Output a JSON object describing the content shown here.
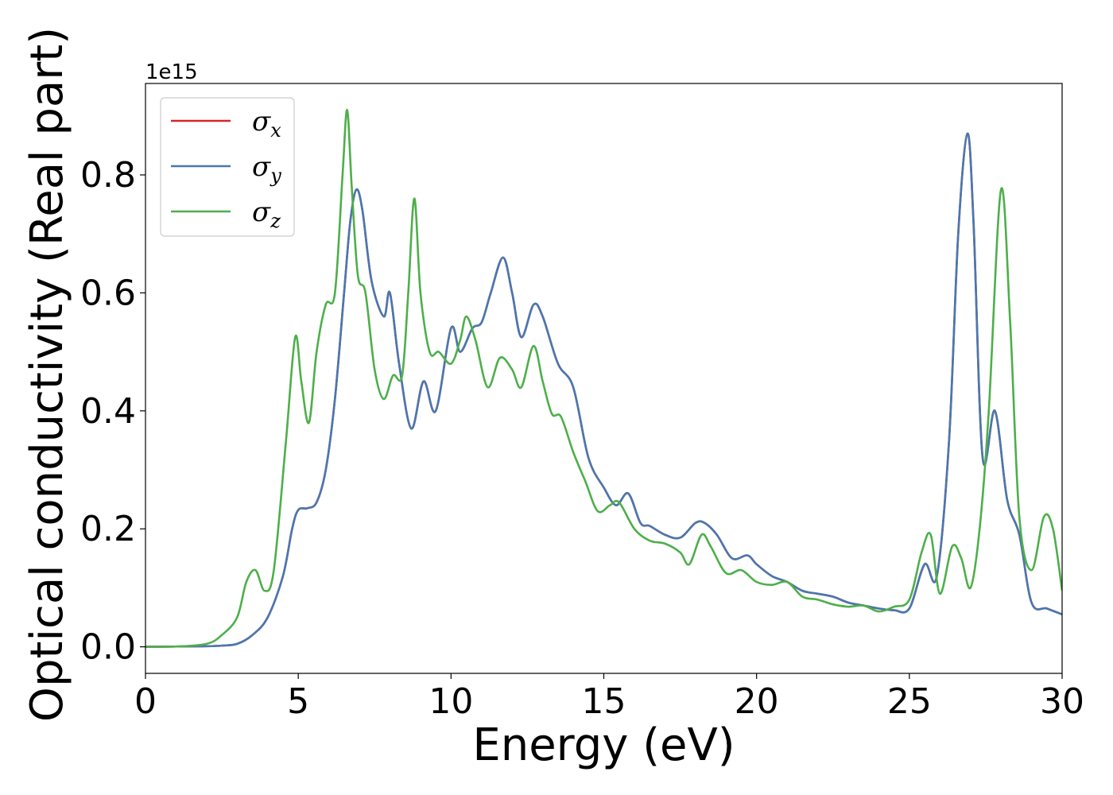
{
  "chart_data": {
    "type": "line",
    "xlabel": "Energy (eV)",
    "ylabel": "Optical conductivity (Real part)",
    "y_offset_text": "1e15",
    "xlim": [
      0,
      30
    ],
    "ylim": [
      -0.045,
      0.955
    ],
    "x_ticks": [
      0,
      5,
      10,
      15,
      20,
      25,
      30
    ],
    "x_tick_labels": [
      "0",
      "5",
      "10",
      "15",
      "20",
      "25",
      "30"
    ],
    "y_ticks": [
      0.0,
      0.2,
      0.4,
      0.6,
      0.8
    ],
    "y_tick_labels": [
      "0.0",
      "0.2",
      "0.4",
      "0.6",
      "0.8"
    ],
    "grid": false,
    "legend_position": "top-left",
    "series": [
      {
        "name": "σx",
        "name_base": "σ",
        "name_sub": "x",
        "color": "#d62728",
        "x": [
          0,
          1,
          2,
          2.5,
          3,
          3.5,
          4,
          4.5,
          4.8,
          5,
          5.3,
          5.6,
          5.9,
          6.2,
          6.5,
          6.7,
          6.9,
          7.1,
          7.4,
          7.8,
          8.0,
          8.3,
          8.7,
          9.1,
          9.5,
          10.0,
          10.3,
          10.7,
          11.0,
          11.3,
          11.7,
          12.0,
          12.3,
          12.7,
          13.0,
          13.5,
          14.0,
          14.5,
          15.0,
          15.4,
          15.8,
          16.2,
          16.5,
          17.0,
          17.5,
          18.0,
          18.3,
          18.7,
          19.2,
          19.7,
          20.0,
          20.5,
          21.0,
          21.5,
          22.0,
          22.5,
          23.0,
          23.5,
          24.0,
          24.5,
          25.0,
          25.5,
          25.9,
          26.3,
          26.6,
          26.9,
          27.1,
          27.4,
          27.8,
          28.2,
          28.6,
          29.0,
          29.5,
          30.0
        ],
        "y": [
          0,
          0.0005,
          0.001,
          0.002,
          0.005,
          0.02,
          0.05,
          0.12,
          0.2,
          0.232,
          0.235,
          0.245,
          0.3,
          0.42,
          0.6,
          0.72,
          0.775,
          0.74,
          0.62,
          0.56,
          0.6,
          0.48,
          0.37,
          0.45,
          0.4,
          0.54,
          0.5,
          0.54,
          0.55,
          0.6,
          0.66,
          0.6,
          0.525,
          0.58,
          0.56,
          0.48,
          0.44,
          0.32,
          0.27,
          0.24,
          0.26,
          0.21,
          0.205,
          0.19,
          0.185,
          0.21,
          0.21,
          0.19,
          0.15,
          0.155,
          0.14,
          0.12,
          0.11,
          0.095,
          0.09,
          0.085,
          0.075,
          0.07,
          0.065,
          0.062,
          0.065,
          0.14,
          0.12,
          0.35,
          0.7,
          0.87,
          0.72,
          0.32,
          0.4,
          0.25,
          0.19,
          0.075,
          0.065,
          0.055
        ]
      },
      {
        "name": "σy",
        "name_base": "σ",
        "name_sub": "y",
        "color": "#4878b0",
        "x": [
          0,
          1,
          2,
          2.5,
          3,
          3.5,
          4,
          4.5,
          4.8,
          5,
          5.3,
          5.6,
          5.9,
          6.2,
          6.5,
          6.7,
          6.9,
          7.1,
          7.4,
          7.8,
          8.0,
          8.3,
          8.7,
          9.1,
          9.5,
          10.0,
          10.3,
          10.7,
          11.0,
          11.3,
          11.7,
          12.0,
          12.3,
          12.7,
          13.0,
          13.5,
          14.0,
          14.5,
          15.0,
          15.4,
          15.8,
          16.2,
          16.5,
          17.0,
          17.5,
          18.0,
          18.3,
          18.7,
          19.2,
          19.7,
          20.0,
          20.5,
          21.0,
          21.5,
          22.0,
          22.5,
          23.0,
          23.5,
          24.0,
          24.5,
          25.0,
          25.5,
          25.9,
          26.3,
          26.6,
          26.9,
          27.1,
          27.4,
          27.8,
          28.2,
          28.6,
          29.0,
          29.5,
          30.0
        ],
        "y": [
          0,
          0.0005,
          0.001,
          0.002,
          0.005,
          0.02,
          0.05,
          0.12,
          0.2,
          0.232,
          0.235,
          0.245,
          0.3,
          0.42,
          0.6,
          0.72,
          0.775,
          0.74,
          0.62,
          0.56,
          0.6,
          0.48,
          0.37,
          0.45,
          0.4,
          0.54,
          0.5,
          0.54,
          0.55,
          0.6,
          0.66,
          0.6,
          0.525,
          0.58,
          0.56,
          0.48,
          0.44,
          0.32,
          0.27,
          0.24,
          0.26,
          0.21,
          0.205,
          0.19,
          0.185,
          0.21,
          0.21,
          0.19,
          0.15,
          0.155,
          0.14,
          0.12,
          0.11,
          0.095,
          0.09,
          0.085,
          0.075,
          0.07,
          0.065,
          0.062,
          0.065,
          0.14,
          0.12,
          0.35,
          0.7,
          0.87,
          0.72,
          0.32,
          0.4,
          0.25,
          0.19,
          0.075,
          0.065,
          0.055
        ]
      },
      {
        "name": "σz",
        "name_base": "σ",
        "name_sub": "z",
        "color": "#4daf4a",
        "x": [
          0,
          1,
          2,
          2.5,
          3,
          3.3,
          3.6,
          3.9,
          4.2,
          4.6,
          4.9,
          5.1,
          5.35,
          5.6,
          5.9,
          6.2,
          6.45,
          6.6,
          6.75,
          6.95,
          7.2,
          7.5,
          7.8,
          8.1,
          8.4,
          8.6,
          8.8,
          9.0,
          9.3,
          9.6,
          10.0,
          10.3,
          10.5,
          10.8,
          11.2,
          11.6,
          12.0,
          12.3,
          12.7,
          13.0,
          13.3,
          13.6,
          14.0,
          14.4,
          14.8,
          15.2,
          15.5,
          16.0,
          16.5,
          17.0,
          17.5,
          17.8,
          18.2,
          18.5,
          19.0,
          19.5,
          20.0,
          20.5,
          21.0,
          21.5,
          22.0,
          22.5,
          23.0,
          23.5,
          24.0,
          24.5,
          25.0,
          25.4,
          25.7,
          26.0,
          26.4,
          26.7,
          27.0,
          27.3,
          27.6,
          28.0,
          28.3,
          28.6,
          29.0,
          29.4,
          29.7,
          30.0
        ],
        "y": [
          0,
          0.0005,
          0.005,
          0.02,
          0.05,
          0.11,
          0.13,
          0.095,
          0.13,
          0.35,
          0.525,
          0.45,
          0.38,
          0.5,
          0.58,
          0.6,
          0.8,
          0.91,
          0.78,
          0.63,
          0.6,
          0.47,
          0.42,
          0.46,
          0.46,
          0.6,
          0.76,
          0.6,
          0.5,
          0.5,
          0.48,
          0.52,
          0.56,
          0.52,
          0.44,
          0.49,
          0.47,
          0.44,
          0.51,
          0.45,
          0.395,
          0.39,
          0.33,
          0.28,
          0.23,
          0.24,
          0.245,
          0.2,
          0.18,
          0.175,
          0.16,
          0.14,
          0.19,
          0.17,
          0.125,
          0.13,
          0.11,
          0.105,
          0.11,
          0.085,
          0.08,
          0.072,
          0.068,
          0.07,
          0.06,
          0.068,
          0.08,
          0.16,
          0.19,
          0.09,
          0.17,
          0.15,
          0.1,
          0.2,
          0.4,
          0.775,
          0.55,
          0.22,
          0.13,
          0.22,
          0.2,
          0.095
        ]
      }
    ]
  }
}
